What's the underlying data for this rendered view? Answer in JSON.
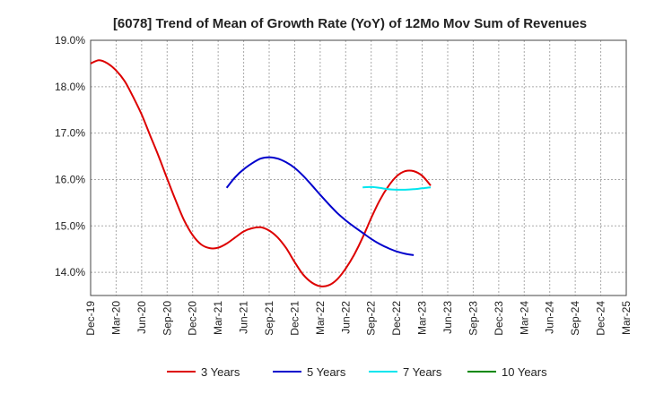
{
  "chart_data": {
    "type": "line",
    "title": "[6078]  Trend of Mean of Growth Rate (YoY) of 12Mo Mov Sum of Revenues",
    "xlabel": "",
    "ylabel": "",
    "ylim": [
      13.5,
      19.0
    ],
    "yticks": [
      {
        "v": 14.0,
        "label": "14.0%"
      },
      {
        "v": 15.0,
        "label": "15.0%"
      },
      {
        "v": 16.0,
        "label": "16.0%"
      },
      {
        "v": 17.0,
        "label": "17.0%"
      },
      {
        "v": 18.0,
        "label": "18.0%"
      },
      {
        "v": 19.0,
        "label": "19.0%"
      }
    ],
    "xticks": [
      "Dec-19",
      "Mar-20",
      "Jun-20",
      "Sep-20",
      "Dec-20",
      "Mar-21",
      "Jun-21",
      "Sep-21",
      "Dec-21",
      "Mar-22",
      "Jun-22",
      "Sep-22",
      "Dec-22",
      "Mar-23",
      "Jun-23",
      "Sep-23",
      "Dec-23",
      "Mar-24",
      "Jun-24",
      "Sep-24",
      "Dec-24",
      "Mar-25"
    ],
    "grid": true,
    "legend_position": "bottom",
    "series": [
      {
        "name": "3 Years",
        "color": "#dd0000",
        "points": [
          [
            0,
            18.5
          ],
          [
            1,
            18.57
          ],
          [
            2,
            18.5
          ],
          [
            3,
            18.35
          ],
          [
            4,
            18.12
          ],
          [
            5,
            17.78
          ],
          [
            6,
            17.4
          ],
          [
            7,
            16.95
          ],
          [
            8,
            16.5
          ],
          [
            9,
            16.02
          ],
          [
            10,
            15.55
          ],
          [
            11,
            15.12
          ],
          [
            12,
            14.8
          ],
          [
            13,
            14.6
          ],
          [
            14,
            14.52
          ],
          [
            15,
            14.53
          ],
          [
            16,
            14.62
          ],
          [
            17,
            14.75
          ],
          [
            18,
            14.88
          ],
          [
            19,
            14.95
          ],
          [
            20,
            14.97
          ],
          [
            21,
            14.9
          ],
          [
            22,
            14.75
          ],
          [
            23,
            14.52
          ],
          [
            24,
            14.22
          ],
          [
            25,
            13.95
          ],
          [
            26,
            13.78
          ],
          [
            27,
            13.7
          ],
          [
            28,
            13.72
          ],
          [
            29,
            13.85
          ],
          [
            30,
            14.08
          ],
          [
            31,
            14.38
          ],
          [
            32,
            14.75
          ],
          [
            33,
            15.17
          ],
          [
            34,
            15.55
          ],
          [
            35,
            15.85
          ],
          [
            36,
            16.07
          ],
          [
            37,
            16.18
          ],
          [
            38,
            16.18
          ],
          [
            39,
            16.08
          ],
          [
            40,
            15.87
          ]
        ]
      },
      {
        "name": "5 Years",
        "color": "#0000cc",
        "points": [
          [
            16,
            15.82
          ],
          [
            17,
            16.05
          ],
          [
            18,
            16.22
          ],
          [
            19,
            16.35
          ],
          [
            20,
            16.45
          ],
          [
            21,
            16.48
          ],
          [
            22,
            16.45
          ],
          [
            23,
            16.37
          ],
          [
            24,
            16.25
          ],
          [
            25,
            16.08
          ],
          [
            26,
            15.88
          ],
          [
            27,
            15.67
          ],
          [
            28,
            15.47
          ],
          [
            29,
            15.28
          ],
          [
            30,
            15.12
          ],
          [
            31,
            14.98
          ],
          [
            32,
            14.85
          ],
          [
            33,
            14.72
          ],
          [
            34,
            14.61
          ],
          [
            35,
            14.52
          ],
          [
            36,
            14.45
          ],
          [
            37,
            14.4
          ],
          [
            38,
            14.37
          ]
        ]
      },
      {
        "name": "7 Years",
        "color": "#00e5ee",
        "points": [
          [
            32,
            15.83
          ],
          [
            33,
            15.84
          ],
          [
            34,
            15.82
          ],
          [
            35,
            15.79
          ],
          [
            36,
            15.78
          ],
          [
            37,
            15.78
          ],
          [
            38,
            15.79
          ],
          [
            39,
            15.81
          ],
          [
            40,
            15.83
          ]
        ]
      },
      {
        "name": "10 Years",
        "color": "#008800",
        "points": []
      }
    ]
  }
}
